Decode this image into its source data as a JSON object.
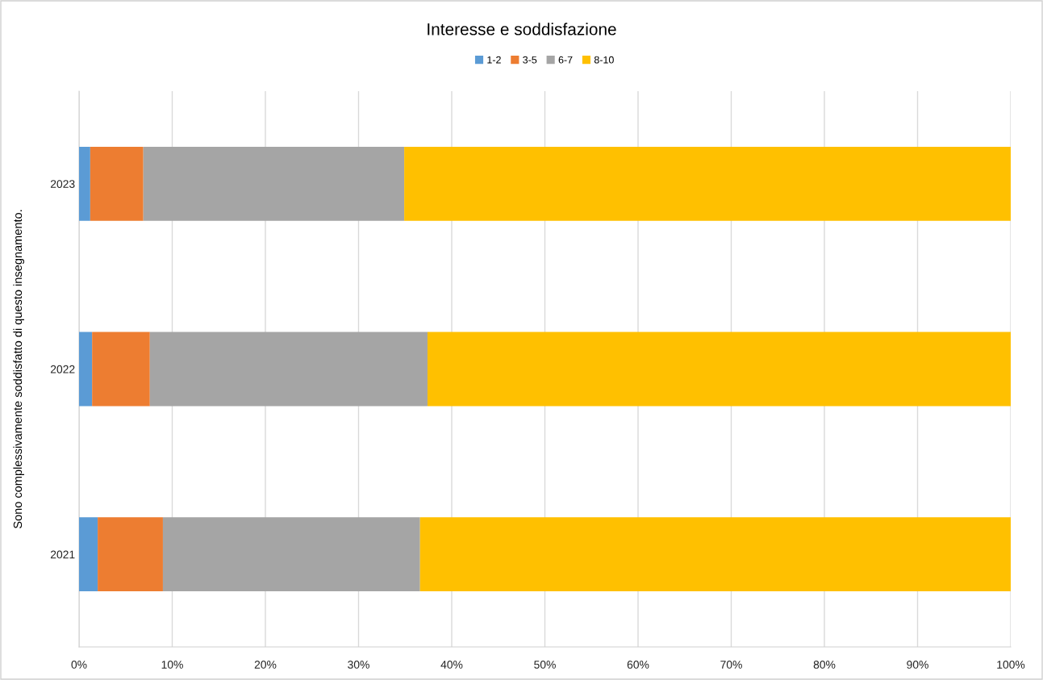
{
  "chart_data": {
    "type": "bar",
    "orientation": "horizontal",
    "stacked": true,
    "title": "Interesse e soddisfazione",
    "ylabel": "Sono complessivamente soddisfatto di questo insegnamento.",
    "categories": [
      "2023",
      "2022",
      "2021"
    ],
    "series": [
      {
        "name": "1-2",
        "color": "#5b9bd5",
        "values": [
          1.2,
          1.4,
          2.0
        ]
      },
      {
        "name": "3-5",
        "color": "#ed7d31",
        "values": [
          5.7,
          6.2,
          7.0
        ]
      },
      {
        "name": "6-7",
        "color": "#a5a5a5",
        "values": [
          28.0,
          29.8,
          27.6
        ]
      },
      {
        "name": "8-10",
        "color": "#ffc000",
        "values": [
          65.1,
          62.6,
          63.4
        ]
      }
    ],
    "xlim": [
      0,
      100
    ],
    "xticks": [
      {
        "value": 0,
        "label": "0%"
      },
      {
        "value": 10,
        "label": "10%"
      },
      {
        "value": 20,
        "label": "20%"
      },
      {
        "value": 30,
        "label": "30%"
      },
      {
        "value": 40,
        "label": "40%"
      },
      {
        "value": 50,
        "label": "50%"
      },
      {
        "value": 60,
        "label": "60%"
      },
      {
        "value": 70,
        "label": "70%"
      },
      {
        "value": 80,
        "label": "80%"
      },
      {
        "value": 90,
        "label": "90%"
      },
      {
        "value": 100,
        "label": "100%"
      }
    ],
    "grid": "x",
    "legend": "top"
  }
}
